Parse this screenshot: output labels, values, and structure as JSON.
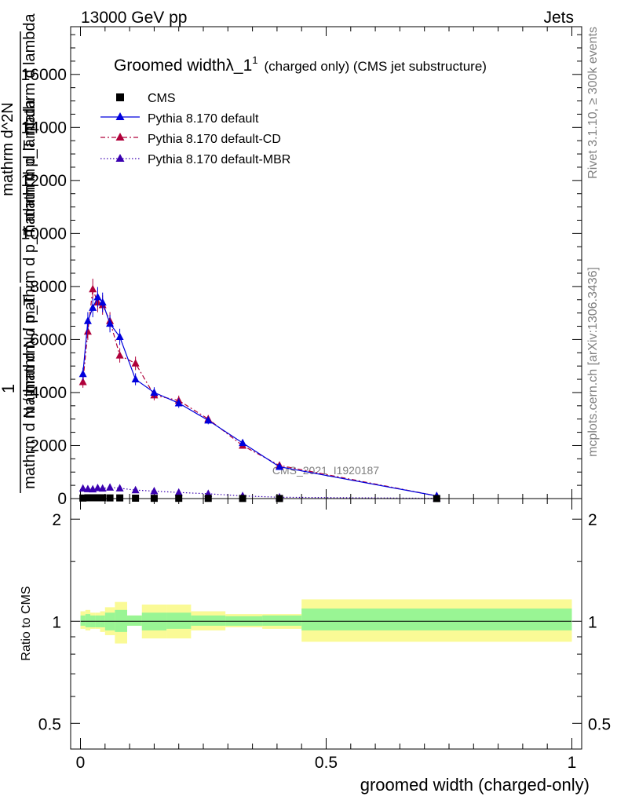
{
  "header": {
    "left": "13000 GeV pp",
    "right": "Jets"
  },
  "side_labels": {
    "rivet": "Rivet 3.1.10, ≥ 300k events",
    "mcplots": "mcplots.cern.ch [arXiv:1306.3436]"
  },
  "watermark": "CMS_2021_I1920187",
  "colors": {
    "cms": "#000000",
    "pythia_default": "#0000dd",
    "pythia_cd": "#b0003a",
    "pythia_mbr": "#3a00b0",
    "band_green": "#99f594",
    "band_yellow": "#fafa96"
  },
  "chart_data": [
    {
      "type": "line",
      "title": "Groomed widthλ_1",
      "title_sup": "1",
      "title_suffix": "(charged only) (CMS jet substructure)",
      "ylabel_lines": [
        "mathrm d N / mathrm d p_T mathrm d lambda",
        "1",
        "mathrm d N / mathrm d p_T",
        "mathrm d^2N",
        "mathrm d p_T mathrm d lambda"
      ],
      "xlim": [
        -0.02,
        1.02
      ],
      "ylim": [
        0,
        17800
      ],
      "yticks": [
        0,
        2000,
        4000,
        6000,
        8000,
        10000,
        12000,
        14000,
        16000
      ],
      "ytick_labels": [
        "0",
        "2000",
        "4000",
        "6000",
        "8000",
        "10000",
        "12000",
        "14000",
        "16000"
      ],
      "legend_position": "top-left",
      "series": [
        {
          "name": "CMS",
          "marker": "square",
          "x": [
            0.005,
            0.015,
            0.025,
            0.035,
            0.045,
            0.06,
            0.08,
            0.112,
            0.15,
            0.2,
            0.26,
            0.33,
            0.405,
            0.725
          ],
          "y": [
            20,
            30,
            30,
            30,
            30,
            25,
            25,
            15,
            10,
            10,
            8,
            5,
            3,
            2
          ]
        },
        {
          "name": "Pythia 8.170 default",
          "marker": "triangle",
          "x": [
            0.005,
            0.015,
            0.025,
            0.035,
            0.045,
            0.06,
            0.08,
            0.112,
            0.15,
            0.2,
            0.26,
            0.33,
            0.405,
            0.725
          ],
          "y": [
            4700,
            6700,
            7200,
            7600,
            7400,
            6600,
            6100,
            4500,
            4000,
            3600,
            2950,
            2100,
            1200,
            100
          ]
        },
        {
          "name": "Pythia 8.170 default-CD",
          "marker": "triangle",
          "x": [
            0.005,
            0.015,
            0.025,
            0.035,
            0.045,
            0.06,
            0.08,
            0.112,
            0.15,
            0.2,
            0.26,
            0.33,
            0.405,
            0.725
          ],
          "y": [
            4400,
            6300,
            7900,
            7400,
            7300,
            6700,
            5400,
            5100,
            3900,
            3700,
            3000,
            2000,
            1250,
            100
          ]
        },
        {
          "name": "Pythia 8.170 default-MBR",
          "marker": "triangle",
          "x": [
            0.005,
            0.015,
            0.025,
            0.035,
            0.045,
            0.06,
            0.08,
            0.112,
            0.15,
            0.2,
            0.26,
            0.33,
            0.405,
            0.725
          ],
          "y": [
            380,
            360,
            350,
            400,
            380,
            420,
            390,
            320,
            280,
            230,
            180,
            100,
            50,
            10
          ]
        }
      ]
    },
    {
      "type": "area",
      "ylabel": "Ratio to CMS",
      "xlabel": "groomed width (charged-only)",
      "xlim": [
        -0.02,
        1.02
      ],
      "ylim": [
        0.42,
        2.3
      ],
      "log_y": true,
      "yticks": [
        0.5,
        1,
        2
      ],
      "ytick_labels": [
        "0.5",
        "1",
        "2"
      ],
      "xticks": [
        0,
        0.5,
        1
      ],
      "xtick_labels": [
        "0",
        "0.5",
        "1"
      ],
      "bins": [
        {
          "lo": 0.0,
          "hi": 0.01,
          "green": [
            0.97,
            1.04
          ],
          "yellow": [
            0.95,
            1.07
          ]
        },
        {
          "lo": 0.01,
          "hi": 0.02,
          "green": [
            0.96,
            1.05
          ],
          "yellow": [
            0.94,
            1.08
          ]
        },
        {
          "lo": 0.02,
          "hi": 0.03,
          "green": [
            0.96,
            1.04
          ],
          "yellow": [
            0.95,
            1.06
          ]
        },
        {
          "lo": 0.03,
          "hi": 0.04,
          "green": [
            0.96,
            1.04
          ],
          "yellow": [
            0.95,
            1.06
          ]
        },
        {
          "lo": 0.04,
          "hi": 0.05,
          "green": [
            0.96,
            1.04
          ],
          "yellow": [
            0.93,
            1.07
          ]
        },
        {
          "lo": 0.05,
          "hi": 0.07,
          "green": [
            0.94,
            1.06
          ],
          "yellow": [
            0.91,
            1.1
          ]
        },
        {
          "lo": 0.07,
          "hi": 0.095,
          "green": [
            0.93,
            1.08
          ],
          "yellow": [
            0.86,
            1.14
          ]
        },
        {
          "lo": 0.095,
          "hi": 0.125,
          "green": [
            0.97,
            1.04
          ],
          "yellow": [
            0.97,
            1.04
          ]
        },
        {
          "lo": 0.125,
          "hi": 0.175,
          "green": [
            0.94,
            1.06
          ],
          "yellow": [
            0.89,
            1.12
          ]
        },
        {
          "lo": 0.175,
          "hi": 0.225,
          "green": [
            0.95,
            1.06
          ],
          "yellow": [
            0.89,
            1.12
          ]
        },
        {
          "lo": 0.225,
          "hi": 0.295,
          "green": [
            0.97,
            1.04
          ],
          "yellow": [
            0.94,
            1.07
          ]
        },
        {
          "lo": 0.295,
          "hi": 0.37,
          "green": [
            0.97,
            1.035
          ],
          "yellow": [
            0.96,
            1.05
          ]
        },
        {
          "lo": 0.37,
          "hi": 0.45,
          "green": [
            0.97,
            1.04
          ],
          "yellow": [
            0.95,
            1.05
          ]
        },
        {
          "lo": 0.45,
          "hi": 1.0,
          "green": [
            0.94,
            1.09
          ],
          "yellow": [
            0.87,
            1.16
          ]
        }
      ]
    }
  ]
}
